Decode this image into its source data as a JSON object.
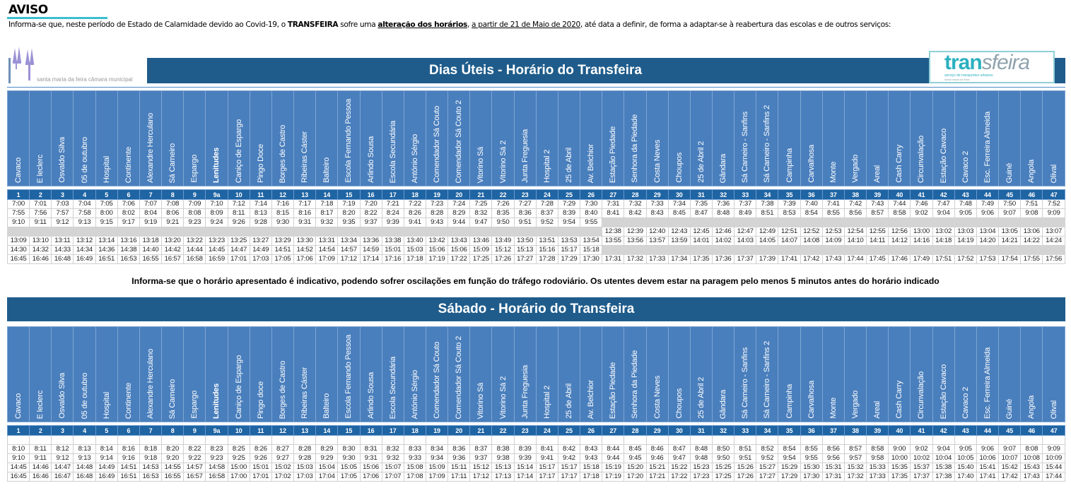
{
  "notice": {
    "title": "AVISO",
    "text_1": "Informa-se que, neste período de Estado de Calamidade devido ao Covid-19, o ",
    "text_bold": "TRANSFEIRA",
    "text_2": " sofre uma ",
    "text_bold_underline": "alteração dos horários",
    "text_3": ", ",
    "text_underline": "a partir de 21 de Maio de 2020",
    "text_4": ", até data a definir, de forma a adaptar-se à reabertura das escolas e de outros serviços:"
  },
  "logos": {
    "municipal": "santa maria da feira câmara municipal",
    "transfeira": "transfeira",
    "transfeira_sub": "serviço de transportes urbanos",
    "transfeira_sub2": "santa maria da feira"
  },
  "colors": {
    "title_bar": "#1f5c8b",
    "header": "#4a7fbd",
    "numbers": "#1f64a3",
    "accent": "#3bbfcf"
  },
  "stop_numbers": [
    "1",
    "2",
    "3",
    "4",
    "5",
    "6",
    "7",
    "8",
    "9",
    "9a",
    "10",
    "11",
    "12",
    "13",
    "14",
    "15",
    "16",
    "17",
    "18",
    "19",
    "20",
    "21",
    "22",
    "23",
    "24",
    "25",
    "26",
    "27",
    "28",
    "29",
    "30",
    "31",
    "32",
    "33",
    "34",
    "35",
    "36",
    "37",
    "38",
    "39",
    "40",
    "41",
    "42",
    "43",
    "44",
    "45",
    "46",
    "47"
  ],
  "weekday": {
    "title": "Dias Úteis - Horário do Transfeira",
    "stops": [
      "Cavaco",
      "E leclerc",
      "Osvaldo Silva",
      "05 de outubro",
      "Hospital",
      "Continente",
      "Alexandre Herculano",
      "Sá Carneiro",
      "Espargo",
      "Lenitudes",
      "Caniço de Espargo",
      "Pingo Doce",
      "Borges de Castro",
      "Ribeiras Cáster",
      "Balteiro",
      "Escola Fernando Pessoa",
      "Arlindo Sousa",
      "Escola Secundária",
      "António Sérgio",
      "Comendador Sá Couto",
      "Comendador Sá Couto 2",
      "Vitorino Sá",
      "Vitorino Sá 2",
      "Junta Freguesia",
      "Hospital 2",
      "25 de Abril",
      "Av. Belchior",
      "Estação Piedade",
      "Senhora da Piedade",
      "Costa Neves",
      "Choupos",
      "25 de Abril 2",
      "Gândara",
      "Sá Carneiro - Sanfins",
      "Sá Carneiro - Sanfins 2",
      "Campinha",
      "Carvalhosa",
      "Monte",
      "Vergado",
      "Areal",
      "Cash Carry",
      "Circunvalação",
      "Estação Cavaco",
      "Cavaco 2",
      "Esc. Ferreira Almeida",
      "Guiné",
      "Angola",
      "Olival"
    ],
    "rows": [
      [
        "7:00",
        "7:01",
        "7:03",
        "7:04",
        "7:05",
        "7:06",
        "7:07",
        "7:08",
        "7:09",
        "7:10",
        "7:12",
        "7:14",
        "7:16",
        "7:17",
        "7:18",
        "7:19",
        "7:20",
        "7:21",
        "7:22",
        "7:23",
        "7:24",
        "7:25",
        "7:26",
        "7:27",
        "7:28",
        "7:29",
        "7:30",
        "7:31",
        "7:32",
        "7:33",
        "7:34",
        "7:35",
        "7:36",
        "7:37",
        "7:38",
        "7:39",
        "7:40",
        "7:41",
        "7:42",
        "7:43",
        "7:44",
        "7:46",
        "7:47",
        "7:48",
        "7:49",
        "7:50",
        "7:51",
        "7:52"
      ],
      [
        "7:55",
        "7:56",
        "7:57",
        "7:58",
        "8:00",
        "8:02",
        "8:04",
        "8:06",
        "8:08",
        "8:09",
        "8:11",
        "8:13",
        "8:15",
        "8:16",
        "8:17",
        "8:20",
        "8:22",
        "8:24",
        "8:26",
        "8:28",
        "8:29",
        "8:32",
        "8:35",
        "8:36",
        "8:37",
        "8:39",
        "8:40",
        "8:41",
        "8:42",
        "8:43",
        "8:45",
        "8:47",
        "8:48",
        "8:49",
        "8:51",
        "8:53",
        "8:54",
        "8:55",
        "8:56",
        "8:57",
        "8:58",
        "9:02",
        "9:04",
        "9:05",
        "9:06",
        "9:07",
        "9:08",
        "9:09"
      ],
      [
        "9:10",
        "9:11",
        "9:12",
        "9:13",
        "9:15",
        "9:17",
        "9:19",
        "9:21",
        "9:23",
        "9:24",
        "9:26",
        "9:28",
        "9:30",
        "9:31",
        "9:32",
        "9:35",
        "9:37",
        "9:39",
        "9:41",
        "9:43",
        "9:44",
        "9:47",
        "9:50",
        "9:51",
        "9:52",
        "9:54",
        "9:55",
        null,
        null,
        null,
        null,
        null,
        null,
        null,
        null,
        null,
        null,
        null,
        null,
        null,
        null,
        null,
        null,
        null,
        null,
        null,
        null,
        null
      ],
      [
        null,
        null,
        null,
        null,
        null,
        null,
        null,
        null,
        null,
        null,
        null,
        null,
        null,
        null,
        null,
        null,
        null,
        null,
        null,
        null,
        null,
        null,
        null,
        null,
        null,
        null,
        null,
        "12:38",
        "12:39",
        "12:40",
        "12:43",
        "12:45",
        "12:46",
        "12:47",
        "12:49",
        "12:51",
        "12:52",
        "12:53",
        "12:54",
        "12:55",
        "12:56",
        "13:00",
        "13:02",
        "13:03",
        "13:04",
        "13:05",
        "13:06",
        "13:07"
      ],
      [
        "13:09",
        "13:10",
        "13:11",
        "13:12",
        "13:14",
        "13:16",
        "13:18",
        "13:20",
        "13:22",
        "13:23",
        "13:25",
        "13:27",
        "13:29",
        "13:30",
        "13:31",
        "13:34",
        "13:36",
        "13:38",
        "13:40",
        "13:42",
        "13:43",
        "13:46",
        "13:49",
        "13:50",
        "13:51",
        "13:53",
        "13:54",
        "13:55",
        "13:56",
        "13:57",
        "13:59",
        "14:01",
        "14:02",
        "14:03",
        "14:05",
        "14:07",
        "14:08",
        "14:09",
        "14:10",
        "14:11",
        "14:12",
        "14:16",
        "14:18",
        "14:19",
        "14:20",
        "14:21",
        "14:22",
        "14:24"
      ],
      [
        "14:30",
        "14:32",
        "14:33",
        "14:34",
        "14:36",
        "14:38",
        "14:40",
        "14:42",
        "14:44",
        "14:45",
        "14:47",
        "14:49",
        "14:51",
        "14:52",
        "14:54",
        "14:57",
        "14:59",
        "15:01",
        "15:03",
        "15:06",
        "15:06",
        "15:09",
        "15:12",
        "15:13",
        "15:16",
        "15:17",
        "15:18",
        null,
        null,
        null,
        null,
        null,
        null,
        null,
        null,
        null,
        null,
        null,
        null,
        null,
        null,
        null,
        null,
        null,
        null,
        null,
        null,
        null
      ],
      [
        "16:45",
        "16:46",
        "16:48",
        "16:49",
        "16:51",
        "16:53",
        "16:55",
        "16:57",
        "16:58",
        "16:59",
        "17:01",
        "17:03",
        "17:05",
        "17:06",
        "17:09",
        "17:12",
        "17:14",
        "17:16",
        "17:18",
        "17:19",
        "17:22",
        "17:25",
        "17:26",
        "17:27",
        "17:28",
        "17:29",
        "17:30",
        "17:31",
        "17:32",
        "17:33",
        "17:34",
        "17:35",
        "17:36",
        "17:37",
        "17:39",
        "17:41",
        "17:42",
        "17:43",
        "17:44",
        "17:45",
        "17:46",
        "17:49",
        "17:51",
        "17:52",
        "17:53",
        "17:54",
        "17:55",
        "17:56"
      ]
    ]
  },
  "note": "Informa-se que o horário apresentado é indicativo, podendo sofrer oscilações em função do tráfego rodoviário. Os utentes devem estar na paragem pelo menos 5 minutos antes do horário indicado",
  "saturday": {
    "title": "Sábado - Horário do Transfeira",
    "stops": [
      "Cavaco",
      "E leclerc",
      "Osvaldo Silva",
      "05 de outubro",
      "Hospital",
      "Continente",
      "Alexandre Herculano",
      "Sá Carneiro",
      "Espargo",
      "Lenitudes",
      "Caniço de Espargo",
      "Pingo doce",
      "Borges de Castro",
      "Ribeiras Cáster",
      "Balteiro",
      "Escola Fernando Pessoa",
      "Arlindo Sousa",
      "Escola Secundária",
      "António Sérgio",
      "Comendador Sá Couto",
      "Comendador Sá Couto 2",
      "Vitorino Sá",
      "Vitorino Sá 2",
      "Junta Freguesia",
      "Hospital 2",
      "25 de Abril",
      "Av. Belchior",
      "Estação Piedade",
      "Senhora da Piedade",
      "Costa Neves",
      "Choupos",
      "25 de Abril 2",
      "Gândara",
      "Sá Carneiro - Sanfins",
      "Sá Carneiro - Sanfins 2",
      "Campinha",
      "Carvalhosa",
      "Monte",
      "Vergado",
      "Areal",
      "Cash Carry",
      "Circunvalação",
      "Estação Cavaco",
      "Cavaco 2",
      "Esc. Ferreira Almeida",
      "Guiné",
      "Angola",
      "Olival"
    ],
    "rows": [
      [
        "",
        "",
        "",
        "",
        "",
        "",
        "",
        "",
        "",
        "",
        "",
        "",
        "",
        "",
        "",
        "",
        "",
        "",
        "",
        "",
        "",
        "",
        "",
        "",
        "",
        "",
        "",
        "",
        "",
        "",
        "",
        "",
        "",
        "",
        "",
        "",
        "",
        "",
        "",
        "",
        "",
        "",
        "",
        "",
        "",
        "",
        "",
        ""
      ],
      [
        "8:10",
        "8:11",
        "8:12",
        "8:13",
        "8:14",
        "8:16",
        "8:18",
        "8:20",
        "8:22",
        "8:23",
        "8:25",
        "8:26",
        "8:27",
        "8:28",
        "8:29",
        "8:30",
        "8:31",
        "8:32",
        "8:33",
        "8:34",
        "8:36",
        "8:37",
        "8:38",
        "8:39",
        "8:41",
        "8:42",
        "8:43",
        "8:44",
        "8:45",
        "8:46",
        "8:47",
        "8:48",
        "8:50",
        "8:51",
        "8:52",
        "8:54",
        "8:55",
        "8:56",
        "8:57",
        "8:58",
        "9:00",
        "9:02",
        "9:04",
        "9:05",
        "9:06",
        "9:07",
        "8:08",
        "9:09"
      ],
      [
        "9:10",
        "9:11",
        "9:12",
        "9:13",
        "9:14",
        "9:16",
        "9:18",
        "9:20",
        "9:22",
        "9:23",
        "9:25",
        "9:26",
        "9:27",
        "9:28",
        "9:29",
        "9:30",
        "9:31",
        "9:32",
        "9:33",
        "9:34",
        "9:36",
        "9:37",
        "9:38",
        "9:39",
        "9:41",
        "9:42",
        "9:43",
        "9:44",
        "9:45",
        "9:46",
        "9:47",
        "9:48",
        "9:50",
        "9:51",
        "9:52",
        "9:54",
        "9:55",
        "9:56",
        "9:57",
        "9:58",
        "10:00",
        "10:02",
        "10:04",
        "10:05",
        "10:06",
        "10:07",
        "10:08",
        "10:09"
      ],
      [
        "14:45",
        "14:46",
        "14:47",
        "14:48",
        "14:49",
        "14:51",
        "14:53",
        "14:55",
        "14:57",
        "14:58",
        "15:00",
        "15:01",
        "15:02",
        "15:03",
        "15:04",
        "15:05",
        "15:06",
        "15:07",
        "15:08",
        "15:09",
        "15:11",
        "15:12",
        "15:13",
        "15:14",
        "15:17",
        "15:17",
        "15:18",
        "15:19",
        "15:20",
        "15:21",
        "15:22",
        "15:23",
        "15:25",
        "15:26",
        "15:27",
        "15:29",
        "15:30",
        "15:31",
        "15:32",
        "15:33",
        "15:35",
        "15:37",
        "15:38",
        "15:40",
        "15:41",
        "15:42",
        "15:43",
        "15:44"
      ],
      [
        "16:45",
        "16:46",
        "16:47",
        "16:48",
        "16:49",
        "16:51",
        "16:53",
        "16:55",
        "16:57",
        "16:58",
        "17:00",
        "17:01",
        "17:02",
        "17:03",
        "17:04",
        "17:05",
        "17:06",
        "17:07",
        "17:08",
        "17:09",
        "17:11",
        "17:12",
        "17:13",
        "17:14",
        "17:17",
        "17:17",
        "17:18",
        "17:19",
        "17:20",
        "17:21",
        "17:22",
        "17:23",
        "17:25",
        "17:26",
        "17:27",
        "17:29",
        "17:30",
        "17:31",
        "17:32",
        "17:33",
        "17:35",
        "17:37",
        "17:38",
        "17:40",
        "17:41",
        "17:42",
        "17:43",
        "17:44"
      ]
    ]
  }
}
